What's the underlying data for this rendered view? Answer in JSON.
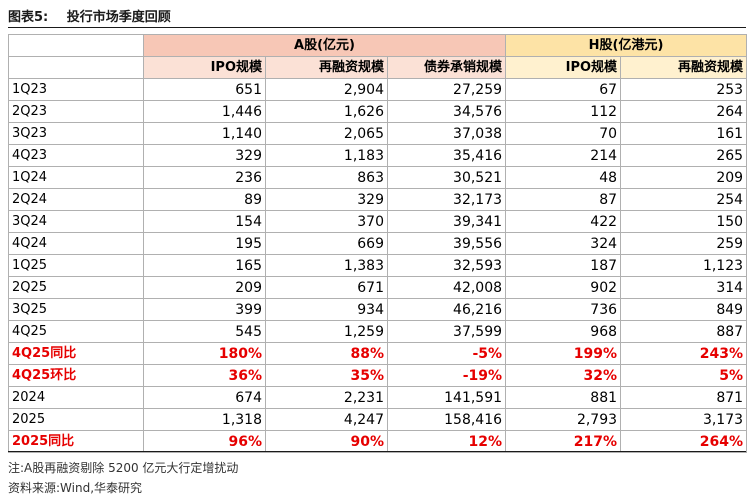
{
  "title": {
    "label": "图表5:",
    "text": "投行市场季度回顾"
  },
  "header": {
    "groups": {
      "a": "A股(亿元)",
      "h": "H股(亿港元)"
    },
    "columns": [
      "IPO规模",
      "再融资规模",
      "债券承销规模",
      "IPO规模",
      "再融资规模"
    ]
  },
  "rows": [
    {
      "label": "1Q23",
      "values": [
        "651",
        "2,904",
        "27,259",
        "67",
        "253"
      ],
      "highlight": false
    },
    {
      "label": "2Q23",
      "values": [
        "1,446",
        "1,626",
        "34,576",
        "112",
        "264"
      ],
      "highlight": false
    },
    {
      "label": "3Q23",
      "values": [
        "1,140",
        "2,065",
        "37,038",
        "70",
        "161"
      ],
      "highlight": false
    },
    {
      "label": "4Q23",
      "values": [
        "329",
        "1,183",
        "35,416",
        "214",
        "265"
      ],
      "highlight": false
    },
    {
      "label": "1Q24",
      "values": [
        "236",
        "863",
        "30,521",
        "48",
        "209"
      ],
      "highlight": false
    },
    {
      "label": "2Q24",
      "values": [
        "89",
        "329",
        "32,173",
        "87",
        "254"
      ],
      "highlight": false
    },
    {
      "label": "3Q24",
      "values": [
        "154",
        "370",
        "39,341",
        "422",
        "150"
      ],
      "highlight": false
    },
    {
      "label": "4Q24",
      "values": [
        "195",
        "669",
        "39,556",
        "324",
        "259"
      ],
      "highlight": false
    },
    {
      "label": "1Q25",
      "values": [
        "165",
        "1,383",
        "32,593",
        "187",
        "1,123"
      ],
      "highlight": false
    },
    {
      "label": "2Q25",
      "values": [
        "209",
        "671",
        "42,008",
        "902",
        "314"
      ],
      "highlight": false
    },
    {
      "label": "3Q25",
      "values": [
        "399",
        "934",
        "46,216",
        "736",
        "849"
      ],
      "highlight": false
    },
    {
      "label": "4Q25",
      "values": [
        "545",
        "1,259",
        "37,599",
        "968",
        "887"
      ],
      "highlight": false
    },
    {
      "label": "4Q25同比",
      "values": [
        "180%",
        "88%",
        "-5%",
        "199%",
        "243%"
      ],
      "highlight": true
    },
    {
      "label": "4Q25环比",
      "values": [
        "36%",
        "35%",
        "-19%",
        "32%",
        "5%"
      ],
      "highlight": true
    },
    {
      "label": "2024",
      "values": [
        "674",
        "2,231",
        "141,591",
        "881",
        "871"
      ],
      "highlight": false
    },
    {
      "label": "2025",
      "values": [
        "1,318",
        "4,247",
        "158,416",
        "2,793",
        "3,173"
      ],
      "highlight": false
    },
    {
      "label": "2025同比",
      "values": [
        "96%",
        "90%",
        "12%",
        "217%",
        "264%"
      ],
      "highlight": true
    }
  ],
  "notes": {
    "note": "注:A股再融资剔除 5200 亿元大行定增扰动",
    "source": "资料来源:Wind,华泰研究"
  },
  "colors": {
    "a_group_bg": "#f7c7b6",
    "h_group_bg": "#fde3a6",
    "a_sub_bg": "#fbe1d6",
    "h_sub_bg": "#fff1cf",
    "highlight_text": "#e60000"
  }
}
